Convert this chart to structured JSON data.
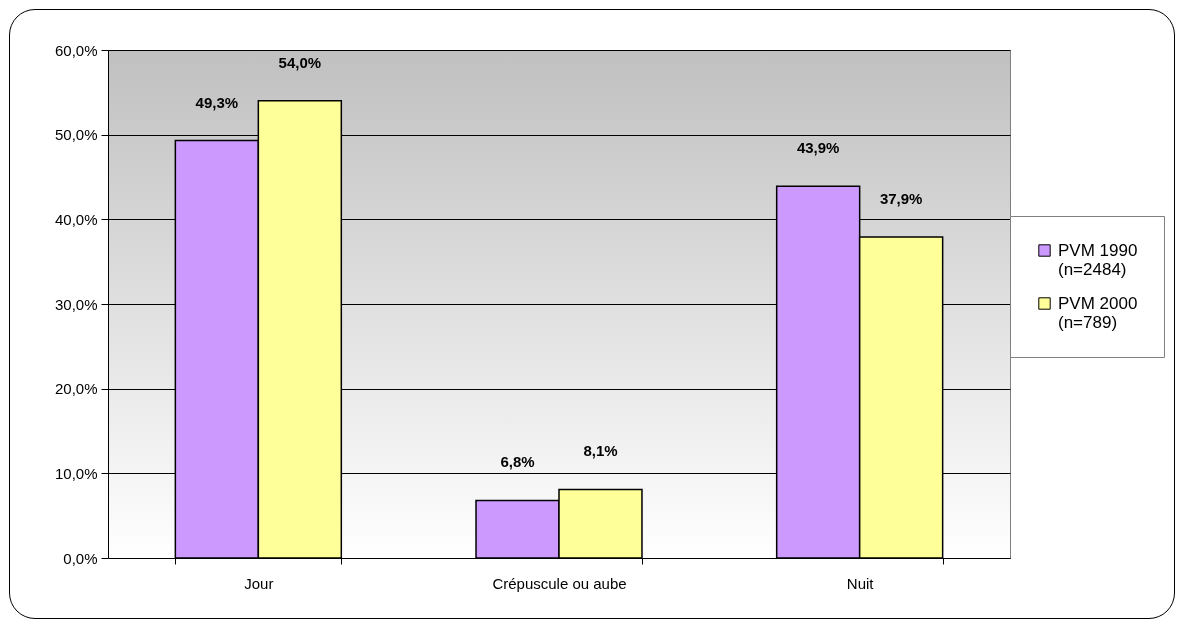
{
  "chart_data": {
    "type": "bar",
    "categories": [
      "Jour",
      "Crépuscule ou aube",
      "Nuit"
    ],
    "series": [
      {
        "name": "PVM 1990 (n=2484)",
        "color": "#cc99ff",
        "values": [
          49.3,
          6.8,
          43.9
        ],
        "value_labels": [
          "49,3%",
          "6,8%",
          "43,9%"
        ]
      },
      {
        "name": "PVM 2000 (n=789)",
        "color": "#ffff99",
        "values": [
          54.0,
          8.1,
          37.9
        ],
        "value_labels": [
          "54,0%",
          "8,1%",
          "37,9%"
        ]
      }
    ],
    "ylim": [
      0,
      60
    ],
    "yticks": [
      {
        "value": 0,
        "label": "0,0%"
      },
      {
        "value": 10,
        "label": "10,0%"
      },
      {
        "value": 20,
        "label": "20,0%"
      },
      {
        "value": 30,
        "label": "30,0%"
      },
      {
        "value": 40,
        "label": "40,0%"
      },
      {
        "value": 50,
        "label": "50,0%"
      },
      {
        "value": 60,
        "label": "60,0%"
      }
    ],
    "grid": "y",
    "legend": "right"
  }
}
